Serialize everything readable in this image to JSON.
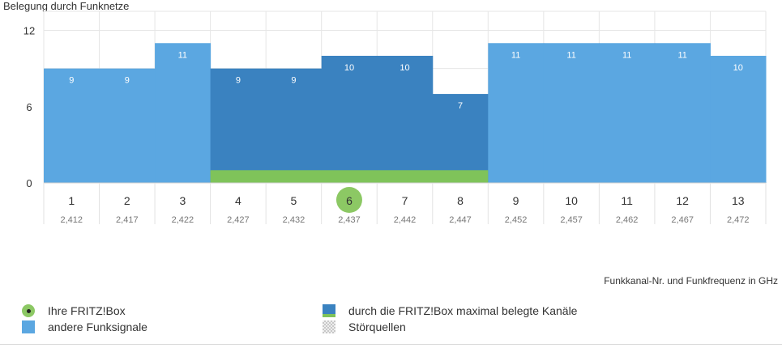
{
  "chart_data": {
    "type": "bar",
    "title": "Belegung durch Funknetze",
    "xlabel": "Funkkanal-Nr. und Funkfrequenz in GHz",
    "ylabel": "",
    "ylim": [
      0,
      13.5
    ],
    "yticks": [
      0,
      6,
      12
    ],
    "categories": [
      "1",
      "2",
      "3",
      "4",
      "5",
      "6",
      "7",
      "8",
      "9",
      "10",
      "11",
      "12",
      "13"
    ],
    "frequencies": [
      "2,412",
      "2,417",
      "2,422",
      "2,427",
      "2,432",
      "2,437",
      "2,442",
      "2,447",
      "2,452",
      "2,457",
      "2,462",
      "2,467",
      "2,472"
    ],
    "values": [
      9,
      9,
      11,
      9,
      9,
      10,
      10,
      7,
      11,
      11,
      11,
      11,
      10
    ],
    "occupied_by_fritzbox": [
      false,
      false,
      false,
      true,
      true,
      true,
      true,
      true,
      false,
      false,
      false,
      false,
      false
    ],
    "fritzbox_channel": "6",
    "fritzbox_band_value": 1,
    "grid": true
  },
  "legend": {
    "fritzbox": "Ihre FRITZ!Box",
    "other_signals": "andere Funksignale",
    "max_channels": "durch die FRITZ!Box maximal belegte Kanäle",
    "interference": "Störquellen"
  },
  "colors": {
    "other": "#5ba7e1",
    "fritz_occupied": "#3a82c0",
    "fritz_band": "#7fc35a",
    "selected_channel": "#8cc864",
    "grid": "#e6e6e6"
  }
}
